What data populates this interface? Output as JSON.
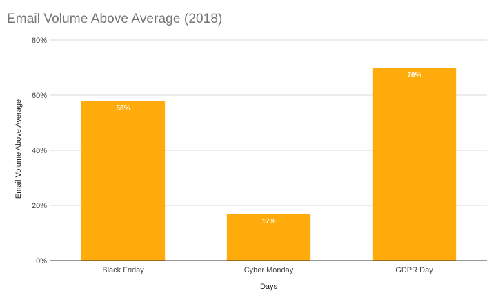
{
  "chart_data": {
    "type": "bar",
    "title": "Email Volume Above Average (2018)",
    "xlabel": "Days",
    "ylabel": "Email Volume Above Average",
    "categories": [
      "Black Friday",
      "Cyber Monday",
      "GDPR Day"
    ],
    "values": [
      58,
      17,
      70
    ],
    "data_labels": [
      "58%",
      "17%",
      "70%"
    ],
    "ylim": [
      0,
      80
    ],
    "y_ticks": [
      0,
      20,
      40,
      60,
      80
    ],
    "y_tick_labels": [
      "0%",
      "20%",
      "40%",
      "60%",
      "80%"
    ],
    "grid": true,
    "legend": "none",
    "bar_color": "#FFAB0B",
    "grid_color": "#D9D9D9",
    "axis_color": "#333333"
  }
}
